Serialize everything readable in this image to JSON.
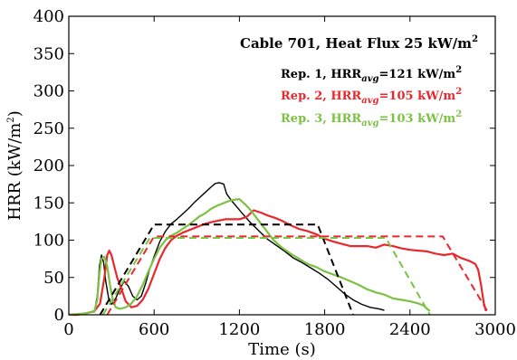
{
  "chart_data": {
    "type": "line",
    "title": "Cable 701, Heat Flux 25 kW/m²",
    "xlabel": "Time (s)",
    "ylabel": "HRR (kW/m²)",
    "xlim": [
      0,
      3000
    ],
    "ylim": [
      0,
      400
    ],
    "xticks": [
      0,
      600,
      1200,
      1800,
      2400,
      3000
    ],
    "yticks": [
      0,
      50,
      100,
      150,
      200,
      250,
      300,
      350,
      400
    ],
    "grid": false,
    "legend_position": "top-right",
    "series": [
      {
        "name": "Rep. 1, HRRavg=121 kW/m²",
        "color": "#000000",
        "style": "solid",
        "x": [
          0,
          60,
          120,
          180,
          200,
          215,
          230,
          245,
          260,
          280,
          300,
          330,
          360,
          390,
          420,
          450,
          480,
          510,
          540,
          570,
          600,
          640,
          680,
          720,
          760,
          800,
          840,
          880,
          920,
          960,
          1000,
          1030,
          1060,
          1090,
          1110,
          1140,
          1180,
          1220,
          1280,
          1340,
          1400,
          1460,
          1520,
          1580,
          1640,
          1700,
          1760,
          1820,
          1880,
          1940,
          2000,
          2060,
          2120,
          2180,
          2220
        ],
        "values": [
          0,
          1,
          2,
          4,
          25,
          65,
          80,
          70,
          45,
          22,
          14,
          22,
          35,
          45,
          38,
          25,
          20,
          25,
          42,
          62,
          78,
          98,
          112,
          122,
          128,
          135,
          142,
          150,
          157,
          164,
          171,
          176,
          177,
          175,
          162,
          154,
          145,
          136,
          123,
          112,
          101,
          93,
          85,
          76,
          70,
          63,
          56,
          48,
          38,
          28,
          20,
          14,
          10,
          8,
          6
        ]
      },
      {
        "name": "Rep. 2, HRRavg=105 kW/m²",
        "color": "#e8282c",
        "style": "solid",
        "x": [
          0,
          60,
          120,
          180,
          220,
          250,
          270,
          285,
          300,
          320,
          340,
          370,
          400,
          440,
          480,
          520,
          560,
          600,
          640,
          680,
          720,
          760,
          800,
          840,
          880,
          920,
          960,
          1000,
          1050,
          1100,
          1150,
          1200,
          1250,
          1300,
          1350,
          1400,
          1450,
          1500,
          1560,
          1620,
          1680,
          1740,
          1800,
          1860,
          1920,
          1980,
          2040,
          2100,
          2160,
          2220,
          2280,
          2340,
          2400,
          2460,
          2520,
          2580,
          2640,
          2700,
          2760,
          2820,
          2860,
          2880,
          2900,
          2920,
          2935
        ],
        "values": [
          0,
          0,
          2,
          5,
          15,
          50,
          80,
          86,
          80,
          65,
          50,
          35,
          18,
          10,
          12,
          20,
          35,
          55,
          75,
          90,
          100,
          106,
          110,
          113,
          116,
          119,
          122,
          124,
          126,
          128,
          128,
          128,
          131,
          140,
          137,
          133,
          130,
          126,
          120,
          115,
          112,
          108,
          102,
          98,
          95,
          92,
          92,
          92,
          90,
          94,
          92,
          89,
          87,
          86,
          85,
          82,
          80,
          82,
          76,
          72,
          68,
          60,
          40,
          15,
          5
        ]
      },
      {
        "name": "Rep. 3, HRRavg=103 kW/m²",
        "color": "#7cc242",
        "style": "solid",
        "x": [
          0,
          60,
          120,
          180,
          200,
          215,
          230,
          250,
          270,
          290,
          310,
          330,
          360,
          400,
          440,
          480,
          520,
          560,
          600,
          640,
          680,
          720,
          760,
          800,
          840,
          880,
          920,
          960,
          1000,
          1040,
          1080,
          1120,
          1160,
          1200,
          1240,
          1280,
          1320,
          1380,
          1440,
          1500,
          1560,
          1620,
          1680,
          1740,
          1800,
          1860,
          1920,
          1980,
          2040,
          2100,
          2160,
          2220,
          2280,
          2340,
          2400,
          2460,
          2500,
          2520,
          2540
        ],
        "values": [
          0,
          1,
          2,
          5,
          20,
          55,
          75,
          78,
          65,
          40,
          20,
          10,
          8,
          10,
          15,
          25,
          40,
          58,
          75,
          90,
          100,
          106,
          110,
          115,
          120,
          126,
          132,
          136,
          142,
          146,
          149,
          152,
          154,
          155,
          148,
          140,
          130,
          115,
          100,
          90,
          82,
          75,
          68,
          64,
          58,
          54,
          50,
          45,
          40,
          34,
          30,
          27,
          22,
          20,
          18,
          15,
          12,
          8,
          5
        ]
      },
      {
        "name": "Rep. 1 HRRavg",
        "color": "#000000",
        "style": "dashed",
        "x": [
          220,
          600,
          1750,
          2000
        ],
        "values": [
          0,
          121,
          121,
          0
        ]
      },
      {
        "name": "Rep. 2 HRRavg",
        "color": "#e8282c",
        "style": "dashed",
        "x": [
          270,
          600,
          2630,
          2960
        ],
        "values": [
          0,
          105,
          105,
          0
        ]
      },
      {
        "name": "Rep. 3 HRRavg",
        "color": "#7cc242",
        "style": "dashed",
        "x": [
          240,
          570,
          2230,
          2540
        ],
        "values": [
          0,
          103,
          103,
          0
        ]
      }
    ],
    "annotations": {
      "title_main": "Cable 701, Heat Flux 25 kW/m",
      "title_sup": "2",
      "legend": [
        {
          "pre": "Rep. 1, HRR",
          "sub": "avg",
          "post": "=121 kW/m",
          "sup": "2",
          "color": "#000000"
        },
        {
          "pre": "Rep. 2, HRR",
          "sub": "avg",
          "post": "=105 kW/m",
          "sup": "2",
          "color": "#e8282c"
        },
        {
          "pre": "Rep. 3, HRR",
          "sub": "avg",
          "post": "=103 kW/m",
          "sup": "2",
          "color": "#7cc242"
        }
      ],
      "ylabel_pre": "HRR (kW/m",
      "ylabel_sup": "2",
      "ylabel_post": ")"
    }
  }
}
